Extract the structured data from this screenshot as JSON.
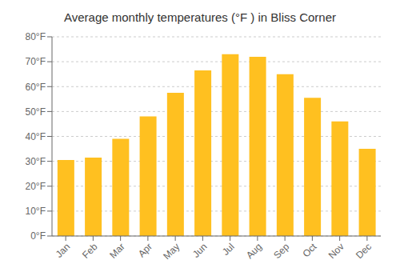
{
  "chart_data": {
    "type": "bar",
    "title": "Average monthly temperatures (°F ) in Bliss Corner",
    "categories": [
      "Jan",
      "Feb",
      "Mar",
      "Apr",
      "May",
      "Jun",
      "Jul",
      "Aug",
      "Sep",
      "Oct",
      "Nov",
      "Dec"
    ],
    "values": [
      30.5,
      31.5,
      39.0,
      48.0,
      57.5,
      66.5,
      73.0,
      72.0,
      65.0,
      55.5,
      46.0,
      35.0
    ],
    "color": "#FFC020",
    "ylim": [
      0,
      80
    ],
    "yticks": [
      {
        "value": 0,
        "label": "0°F"
      },
      {
        "value": 10,
        "label": "10°F"
      },
      {
        "value": 20,
        "label": "20°F"
      },
      {
        "value": 30,
        "label": "30°F"
      },
      {
        "value": 40,
        "label": "40°F"
      },
      {
        "value": 50,
        "label": "50°F"
      },
      {
        "value": 60,
        "label": "60°F"
      },
      {
        "value": 70,
        "label": "70°F"
      },
      {
        "value": 80,
        "label": "80°F"
      }
    ],
    "grid": true
  }
}
